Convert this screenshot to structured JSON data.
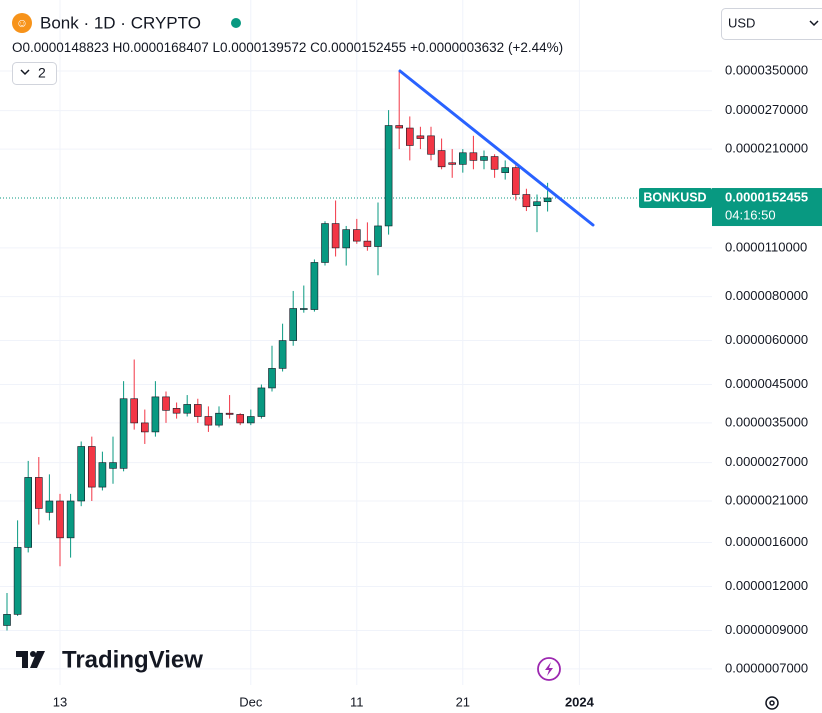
{
  "header": {
    "title": "Bonk · 1D · CRYPTO",
    "ohlc_labels": [
      "O",
      "H",
      "L",
      "C"
    ],
    "change": "+0.0000003632",
    "change_percent": "(+2.44%)",
    "interval_button": "2",
    "currency": "USD",
    "brand": "TradingView"
  },
  "chart_data": {
    "type": "candlestick",
    "log_scale": true,
    "grid": true,
    "up_color": "#089981",
    "down_color": "#f23645",
    "categories": [
      null,
      null,
      null,
      null,
      null,
      "13",
      null,
      null,
      null,
      null,
      null,
      null,
      null,
      null,
      null,
      null,
      null,
      null,
      null,
      null,
      null,
      null,
      null,
      "Dec",
      null,
      null,
      null,
      null,
      null,
      null,
      null,
      null,
      null,
      "11",
      null,
      null,
      null,
      null,
      null,
      null,
      null,
      null,
      null,
      "21",
      null,
      null,
      null,
      null,
      null,
      null,
      null,
      null,
      null,
      null,
      "2024"
    ],
    "open": [
      9.3e-07,
      1e-06,
      1.55e-06,
      2.45e-06,
      1.95e-06,
      2.1e-06,
      1.65e-06,
      2.1e-06,
      3e-06,
      2.3e-06,
      2.6e-06,
      2.6e-06,
      4.1e-06,
      3.5e-06,
      3.3e-06,
      4.15e-06,
      3.85e-06,
      3.73e-06,
      3.95e-06,
      3.65e-06,
      3.45e-06,
      3.73e-06,
      3.7e-06,
      3.5e-06,
      3.65e-06,
      4.4e-06,
      5e-06,
      6e-06,
      7.35e-06,
      7.35e-06,
      1e-05,
      1.29e-05,
      1.1e-05,
      1.24e-05,
      1.15e-05,
      1.11e-05,
      1.27e-05,
      2.45e-05,
      2.41e-05,
      2.29e-05,
      2.29e-05,
      2.08e-05,
      1.92e-05,
      1.9e-05,
      2.05e-05,
      1.95e-05,
      2e-05,
      1.8e-05,
      1.86e-05,
      1.56e-05,
      1.45e-05,
      1.48823e-05,
      null,
      null,
      null
    ],
    "high": [
      1.15e-06,
      1.85e-06,
      2.73e-06,
      2.8e-06,
      2.5e-06,
      2.2e-06,
      2.2e-06,
      3.1e-06,
      3.2e-06,
      2.9e-06,
      3.2e-06,
      4.6e-06,
      5.3e-06,
      3.82e-06,
      4.6e-06,
      4.3e-06,
      4e-06,
      4.2e-06,
      4.1e-06,
      3.9e-06,
      3.9e-06,
      4.2e-06,
      3.73e-06,
      3.82e-06,
      4.5e-06,
      5.8e-06,
      6.7e-06,
      8.3e-06,
      8.6e-06,
      1.02e-05,
      1.31e-05,
      1.5e-05,
      1.27e-05,
      1.33e-05,
      1.3e-05,
      1.48e-05,
      2.71e-05,
      3.5e-05,
      2.6e-05,
      2.43e-05,
      2.43e-05,
      2.25e-05,
      2.1e-05,
      2.1e-05,
      2.29e-05,
      2.08e-05,
      2.03e-05,
      1.95e-05,
      1.92e-05,
      1.62e-05,
      1.56e-05,
      1.68407e-05,
      null,
      null,
      null
    ],
    "low": [
      9e-07,
      9.9e-07,
      1.5e-06,
      1.8e-06,
      1.85e-06,
      1.37e-06,
      1.45e-06,
      2.03e-06,
      2.1e-06,
      2.25e-06,
      2.35e-06,
      2.55e-06,
      3.35e-06,
      3.05e-06,
      3.2e-06,
      3.5e-06,
      3.6e-06,
      3.65e-06,
      3.5e-06,
      3.3e-06,
      3.4e-06,
      3.6e-06,
      3.45e-06,
      3.45e-06,
      3.6e-06,
      4.3e-06,
      4.9e-06,
      5.8e-06,
      7.2e-06,
      7.25e-06,
      9.8e-06,
      1.04e-05,
      9.8e-06,
      1.13e-05,
      1.08e-05,
      9.2e-06,
      1.2e-05,
      2.1e-05,
      1.95e-05,
      2.1e-05,
      1.95e-05,
      1.84e-05,
      1.74e-05,
      1.8e-05,
      1.84e-05,
      1.84e-05,
      1.74e-05,
      1.72e-05,
      1.5e-05,
      1.4e-05,
      1.22e-05,
      1.39572e-05,
      null,
      null,
      null
    ],
    "close": [
      1e-06,
      1.55e-06,
      2.45e-06,
      2e-06,
      2.1e-06,
      1.65e-06,
      2.1e-06,
      3e-06,
      2.3e-06,
      2.7e-06,
      2.7e-06,
      4.1e-06,
      3.5e-06,
      3.3e-06,
      4.15e-06,
      3.8e-06,
      3.73e-06,
      3.95e-06,
      3.65e-06,
      3.45e-06,
      3.73e-06,
      3.7e-06,
      3.5e-06,
      3.65e-06,
      4.4e-06,
      5e-06,
      6e-06,
      7.4e-06,
      7.4e-06,
      1e-05,
      1.29e-05,
      1.1e-05,
      1.24e-05,
      1.15e-05,
      1.11e-05,
      1.27e-05,
      2.45e-05,
      2.41e-05,
      2.15e-05,
      2.25e-05,
      2.03e-05,
      1.87e-05,
      1.9e-05,
      2.05e-05,
      1.95e-05,
      2e-05,
      1.84e-05,
      1.86e-05,
      1.56e-05,
      1.44e-05,
      1.488e-05,
      1.52455e-05,
      null,
      null,
      null
    ],
    "ylim": [
      6.3e-07,
      5.57e-05
    ],
    "yticks": [
      {
        "value": 3.5e-05,
        "label": "0.0000350000"
      },
      {
        "value": 2.7e-05,
        "label": "0.0000270000"
      },
      {
        "value": 2.1e-05,
        "label": "0.0000210000"
      },
      {
        "value": 1.1e-05,
        "label": "0.0000110000"
      },
      {
        "value": 8e-06,
        "label": "0.0000080000"
      },
      {
        "value": 6e-06,
        "label": "0.0000060000"
      },
      {
        "value": 4.5e-06,
        "label": "0.0000045000"
      },
      {
        "value": 3.5e-06,
        "label": "0.0000035000"
      },
      {
        "value": 2.7e-06,
        "label": "0.0000027000"
      },
      {
        "value": 2.1e-06,
        "label": "0.0000021000"
      },
      {
        "value": 1.6e-06,
        "label": "0.0000016000"
      },
      {
        "value": 1.2e-06,
        "label": "0.0000012000"
      },
      {
        "value": 9e-07,
        "label": "0.0000009000"
      },
      {
        "value": 7e-07,
        "label": "0.0000007000"
      }
    ],
    "price_label": {
      "symbol": "BONKUSD",
      "countdown": "04:16:50"
    }
  }
}
